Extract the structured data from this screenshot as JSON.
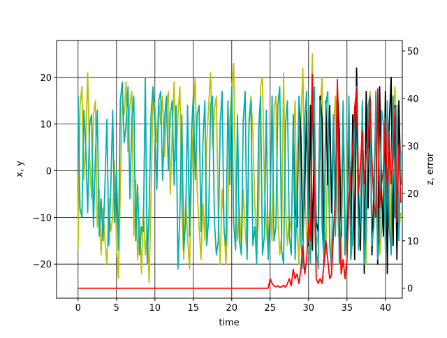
{
  "chart_data": {
    "type": "line",
    "xlabel": "time",
    "ylabel": "x, y",
    "y2label": "z, error",
    "label_color": "#0000ff",
    "grid": true,
    "xlim": [
      -2.8,
      42.2
    ],
    "ylim": [
      -27.3,
      27.9
    ],
    "y2lim": [
      -2.1,
      52.2
    ],
    "xticks": [
      0,
      5,
      10,
      15,
      20,
      25,
      30,
      35,
      40
    ],
    "yticks": [
      {
        "value": -20,
        "label": "−20"
      },
      {
        "value": -10,
        "label": "−10"
      },
      0,
      10,
      20
    ],
    "y2ticks": [
      0,
      10,
      20,
      30,
      40,
      50
    ],
    "x": [
      0,
      0.25,
      0.5,
      0.75,
      1,
      1.25,
      1.5,
      1.75,
      2,
      2.25,
      2.5,
      2.75,
      3,
      3.25,
      3.5,
      3.75,
      4,
      4.25,
      4.5,
      4.75,
      5,
      5.25,
      5.5,
      5.75,
      6,
      6.25,
      6.5,
      6.75,
      7,
      7.25,
      7.5,
      7.75,
      8,
      8.25,
      8.5,
      8.75,
      9,
      9.25,
      9.5,
      9.75,
      10,
      10.25,
      10.5,
      10.75,
      11,
      11.25,
      11.5,
      11.75,
      12,
      12.25,
      12.5,
      12.75,
      13,
      13.25,
      13.5,
      13.75,
      14,
      14.25,
      14.5,
      14.75,
      15,
      15.25,
      15.5,
      15.75,
      16,
      16.25,
      16.5,
      16.75,
      17,
      17.25,
      17.5,
      17.75,
      18,
      18.25,
      18.5,
      18.75,
      19,
      19.25,
      19.5,
      19.75,
      20,
      20.25,
      20.5,
      20.75,
      21,
      21.25,
      21.5,
      21.75,
      22,
      22.25,
      22.5,
      22.75,
      23,
      23.25,
      23.5,
      23.75,
      24,
      24.25,
      24.5,
      24.75,
      25,
      25.25,
      25.5,
      25.75,
      26,
      26.25,
      26.5,
      26.75,
      27,
      27.25,
      27.5,
      27.75,
      28,
      28.25,
      28.5,
      28.75,
      29,
      29.25,
      29.5,
      29.75,
      30,
      30.25,
      30.5,
      30.75,
      31,
      31.25,
      31.5,
      31.75,
      32,
      32.25,
      32.5,
      32.75,
      33,
      33.25,
      33.5,
      33.75,
      34,
      34.25,
      34.5,
      34.75,
      35,
      35.25,
      35.5,
      35.75,
      36,
      36.25,
      36.5,
      36.75,
      37,
      37.25,
      37.5,
      37.75,
      38,
      38.25,
      38.5,
      38.75,
      39,
      39.25,
      39.5,
      39.75,
      40,
      40.25,
      40.5,
      40.75,
      41,
      41.25,
      41.5,
      41.75,
      42
    ],
    "series": [
      {
        "color": "#bfbf00",
        "values": [
          -17,
          14,
          18,
          -2,
          6,
          21,
          3,
          -6,
          12,
          15,
          -12,
          -4,
          -18,
          -8,
          -15,
          -20,
          -6,
          -13,
          -10,
          2,
          -16,
          -23,
          -4,
          15,
          12,
          19,
          4,
          14,
          17,
          -14,
          -2,
          -19,
          -10,
          -22,
          -8,
          -18,
          -12,
          -24,
          -5,
          16,
          14,
          6,
          15,
          10,
          16,
          3,
          13,
          17,
          -5,
          8,
          19,
          2,
          12,
          18,
          -8,
          -19,
          -6,
          -14,
          -21,
          -3,
          12,
          20,
          -4,
          -12,
          -19,
          -7,
          -15,
          6,
          14,
          21,
          5,
          13,
          16,
          -10,
          -20,
          -4,
          -12,
          -20,
          -9,
          11,
          17,
          23,
          -5,
          -15,
          -8,
          -17,
          -4,
          -13,
          -18,
          11,
          16,
          8,
          -7,
          -16,
          -10,
          18,
          20,
          -3,
          -12,
          -18,
          -6,
          -15,
          13,
          16,
          -9,
          -18,
          -14,
          21,
          -7,
          -16,
          -10,
          -13,
          6,
          15,
          -12,
          -20,
          10,
          22,
          -4,
          -14,
          -17,
          8,
          25,
          -6,
          -17,
          -13,
          12,
          20,
          -10,
          -18,
          6,
          -14,
          -20,
          9,
          16,
          -8,
          -16,
          -21,
          14,
          -9,
          -18,
          12,
          -12,
          -16,
          4,
          19,
          -11,
          -17,
          8,
          -13,
          -20,
          13,
          17,
          -14,
          -11,
          -8,
          15,
          -18,
          -13,
          -4,
          10,
          -15,
          3,
          -16,
          12,
          18,
          -8,
          -13,
          -9
        ]
      },
      {
        "color": "#000000",
        "values": [
          null,
          null,
          null,
          null,
          null,
          null,
          null,
          null,
          null,
          null,
          null,
          null,
          null,
          null,
          null,
          null,
          null,
          null,
          null,
          null,
          null,
          null,
          null,
          null,
          null,
          null,
          null,
          null,
          null,
          null,
          null,
          null,
          null,
          null,
          null,
          null,
          null,
          null,
          null,
          null,
          null,
          null,
          null,
          null,
          null,
          null,
          null,
          null,
          null,
          null,
          null,
          null,
          null,
          null,
          null,
          null,
          null,
          null,
          null,
          null,
          null,
          null,
          null,
          null,
          null,
          null,
          null,
          null,
          null,
          null,
          null,
          null,
          null,
          null,
          null,
          null,
          null,
          null,
          null,
          null,
          null,
          null,
          null,
          null,
          null,
          null,
          null,
          null,
          null,
          null,
          null,
          null,
          null,
          null,
          null,
          null,
          null,
          null,
          null,
          null,
          null,
          null,
          null,
          null,
          null,
          null,
          null,
          null,
          null,
          null,
          null,
          null,
          12,
          -8,
          -12,
          15,
          8,
          -15,
          -4,
          13,
          -16,
          14,
          -17,
          10,
          -11,
          -13,
          16,
          11,
          -20,
          15,
          -3,
          14,
          -9,
          12,
          -10,
          18,
          8,
          -14,
          13,
          -18,
          -12,
          9,
          -16,
          12,
          -19,
          22,
          -5,
          -17,
          14,
          -22,
          17,
          -8,
          16,
          -18,
          -4,
          12,
          -20,
          18,
          -5,
          -14,
          17,
          -22,
          10,
          20,
          -16,
          14,
          -19,
          15,
          -3
        ]
      },
      {
        "color": "#00b0b0",
        "values": [
          16,
          -8,
          -10,
          13,
          5,
          -9,
          10,
          12,
          -12,
          3,
          13,
          -14,
          -6,
          -15,
          -3,
          11,
          -16,
          -4,
          13,
          -11,
          0,
          -17,
          15,
          19,
          6,
          10,
          18,
          -6,
          11,
          16,
          -15,
          -3,
          -18,
          -12,
          -13,
          20,
          -20,
          -8,
          12,
          18,
          10,
          -4,
          15,
          17,
          -2,
          11,
          16,
          0,
          12,
          15,
          -3,
          14,
          -21,
          -9,
          12,
          -17,
          -11,
          14,
          -14,
          8,
          16,
          -2,
          12,
          14,
          -13,
          6,
          15,
          -16,
          -10,
          14,
          16,
          -11,
          -18,
          -15,
          10,
          17,
          -13,
          -16,
          15,
          -3,
          18,
          -11,
          -17,
          12,
          -15,
          -18,
          11,
          17,
          -19,
          10,
          15,
          -16,
          -12,
          -20,
          9,
          16,
          -18,
          -14,
          13,
          -19,
          -8,
          16,
          -15,
          -12,
          14,
          18,
          -17,
          -20,
          10,
          15,
          -14,
          -18,
          12,
          -19,
          -6,
          16,
          -15,
          -21,
          11,
          17,
          -13,
          -20,
          13,
          18,
          -17,
          -21,
          15,
          -12,
          -19,
          14,
          17,
          -16,
          -21,
          12,
          -14,
          17,
          -20,
          -11,
          15,
          -18,
          -9,
          16,
          -19,
          -14,
          12,
          18,
          -17,
          -10,
          15,
          -20,
          -13,
          14,
          16,
          -16,
          -12,
          17,
          -19,
          -14,
          13,
          10,
          -17,
          15,
          -12,
          -18,
          16,
          -10,
          14,
          -15,
          4
        ]
      },
      {
        "color": "#ff0000",
        "axis": "y2",
        "values": [
          0,
          0,
          0,
          0,
          0,
          0,
          0,
          0,
          0,
          0,
          0,
          0,
          0,
          0,
          0,
          0,
          0,
          0,
          0,
          0,
          0,
          0,
          0,
          0,
          0,
          0,
          0,
          0,
          0,
          0,
          0,
          0,
          0,
          0,
          0,
          0,
          0,
          0,
          0,
          0,
          0,
          0,
          0,
          0,
          0,
          0,
          0,
          0,
          0,
          0,
          0,
          0,
          0,
          0,
          0,
          0,
          0,
          0,
          0,
          0,
          0,
          0,
          0,
          0,
          0,
          0,
          0,
          0,
          0,
          0,
          0,
          0,
          0,
          0,
          0,
          0,
          0,
          0,
          0,
          0,
          0,
          0,
          0,
          0,
          0,
          0,
          0,
          0,
          0,
          0,
          0,
          0,
          0,
          0,
          0,
          0,
          0,
          0,
          0,
          0,
          2,
          1,
          0.5,
          0.3,
          0.5,
          0.2,
          0.3,
          0.6,
          0.2,
          1,
          2,
          0.5,
          4,
          2,
          3,
          1,
          4,
          9,
          3,
          6,
          14,
          10,
          45,
          20,
          2,
          1,
          2,
          1,
          5,
          10,
          6,
          2,
          3,
          12,
          20,
          44,
          14,
          3,
          6,
          2,
          6,
          18,
          24,
          30,
          38,
          42,
          20,
          26,
          33,
          22,
          28,
          30,
          40,
          27,
          18,
          15,
          42,
          17,
          22,
          25,
          36,
          19,
          33,
          22,
          28,
          38,
          14,
          30,
          18
        ]
      }
    ]
  }
}
